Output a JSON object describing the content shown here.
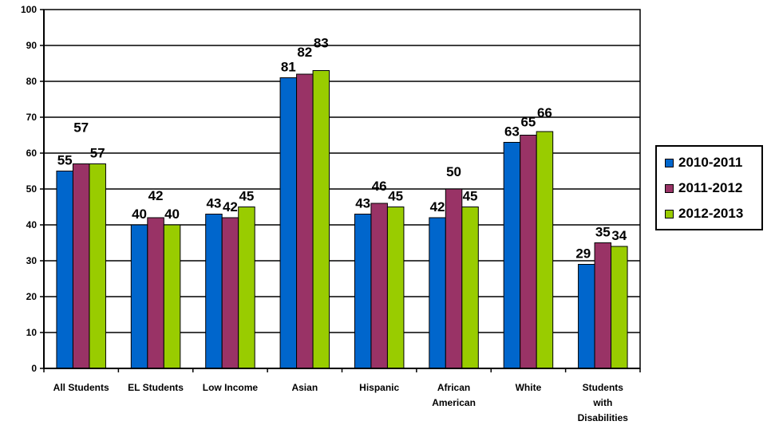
{
  "chart_data": {
    "type": "bar",
    "categories": [
      "All Students",
      "EL Students",
      "Low Income",
      "Asian",
      "Hispanic",
      "African American",
      "White",
      "Students with Disabilities"
    ],
    "category_lines": [
      [
        "All Students"
      ],
      [
        "EL Students"
      ],
      [
        "Low Income"
      ],
      [
        "Asian"
      ],
      [
        "Hispanic"
      ],
      [
        "African",
        "American"
      ],
      [
        "White"
      ],
      [
        "Students",
        "with",
        "Disabilities"
      ]
    ],
    "series": [
      {
        "name": "2010-2011",
        "color": "#0066CC",
        "values": [
          55,
          40,
          43,
          81,
          43,
          42,
          63,
          29
        ]
      },
      {
        "name": "2011-2012",
        "color": "#993366",
        "values": [
          57,
          42,
          42,
          82,
          46,
          50,
          65,
          35
        ]
      },
      {
        "name": "2012-2013",
        "color": "#99CC00",
        "values": [
          57,
          40,
          45,
          83,
          45,
          45,
          66,
          34
        ]
      }
    ],
    "ylim": [
      0,
      100
    ],
    "yticks": [
      0,
      10,
      20,
      30,
      40,
      50,
      60,
      70,
      80,
      90,
      100
    ],
    "grid": true,
    "legend_position": "right"
  }
}
